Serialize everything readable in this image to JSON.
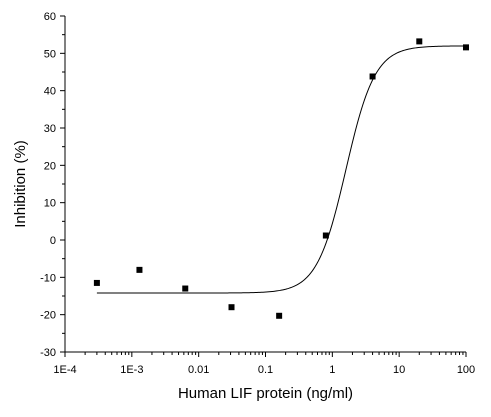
{
  "chart_data": {
    "type": "scatter",
    "title": "",
    "xlabel": "Human LIF protein (ng/ml)",
    "ylabel": "Inhibition (%)",
    "xscale": "log",
    "xlim": [
      0.0001,
      100
    ],
    "ylim": [
      -30,
      60
    ],
    "x_ticks": [
      {
        "value": 0.0001,
        "label": "1E-4"
      },
      {
        "value": 0.001,
        "label": "1E-3"
      },
      {
        "value": 0.01,
        "label": "0.01"
      },
      {
        "value": 0.1,
        "label": "0.1"
      },
      {
        "value": 1,
        "label": "1"
      },
      {
        "value": 10,
        "label": "10"
      },
      {
        "value": 100,
        "label": "100"
      }
    ],
    "y_ticks": [
      {
        "value": -30,
        "label": "-30"
      },
      {
        "value": -20,
        "label": "-20"
      },
      {
        "value": -10,
        "label": "-10"
      },
      {
        "value": 0,
        "label": "0"
      },
      {
        "value": 10,
        "label": "10"
      },
      {
        "value": 20,
        "label": "20"
      },
      {
        "value": 30,
        "label": "30"
      },
      {
        "value": 40,
        "label": "40"
      },
      {
        "value": 50,
        "label": "50"
      },
      {
        "value": 60,
        "label": "60"
      }
    ],
    "grid": false,
    "legend": "none",
    "points": [
      {
        "x": 0.0003,
        "y": -11.5
      },
      {
        "x": 0.0013,
        "y": -8.0
      },
      {
        "x": 0.0063,
        "y": -13.0
      },
      {
        "x": 0.031,
        "y": -18.0
      },
      {
        "x": 0.16,
        "y": -20.3
      },
      {
        "x": 0.8,
        "y": 1.2
      },
      {
        "x": 4.0,
        "y": 43.8
      },
      {
        "x": 20,
        "y": 53.2
      },
      {
        "x": 100,
        "y": 51.6
      }
    ],
    "fit_curve": {
      "model": "four-parameter logistic",
      "bottom": -14.2,
      "top": 52.0,
      "ec50": 1.6,
      "hill_slope": 2.0
    },
    "colors": {
      "axis": "#000000",
      "points": "#000000",
      "curve": "#000000"
    }
  }
}
